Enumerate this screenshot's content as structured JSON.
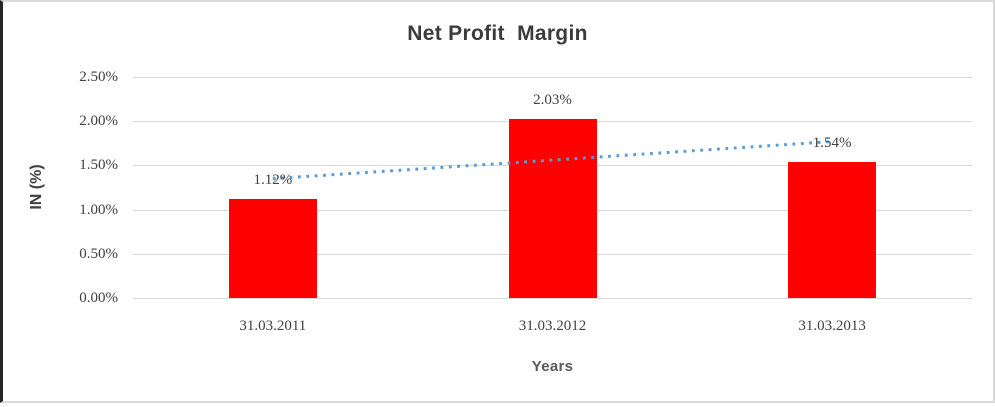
{
  "chart_data": {
    "type": "bar",
    "title": "Net Profit  Margin",
    "categories": [
      "31.03.2011",
      "31.03.2012",
      "31.03.2013"
    ],
    "values": [
      1.12,
      2.03,
      1.54
    ],
    "data_labels": [
      "1.12%",
      "2.03%",
      "1.54%"
    ],
    "xlabel": "Years",
    "ylabel": "IN (%)",
    "ylim": [
      0,
      2.5
    ],
    "yticks": [
      {
        "value": 0.0,
        "label": "0.00%"
      },
      {
        "value": 0.5,
        "label": "0.50%"
      },
      {
        "value": 1.0,
        "label": "1.00%"
      },
      {
        "value": 1.5,
        "label": "1.50%"
      },
      {
        "value": 2.0,
        "label": "2.00%"
      },
      {
        "value": 2.5,
        "label": "2.50%"
      }
    ],
    "grid": true,
    "legend": "none",
    "trendline": {
      "type": "linear",
      "style": "dotted",
      "start_value": 1.35,
      "end_value": 1.77
    },
    "colors": {
      "bar": "#ff0000",
      "gridline": "#d9d9d9",
      "trendline": "#5b9bd5",
      "title_text": "#3b3b3b",
      "tick_text": "#404040",
      "axis_label_text": "#595959"
    }
  }
}
